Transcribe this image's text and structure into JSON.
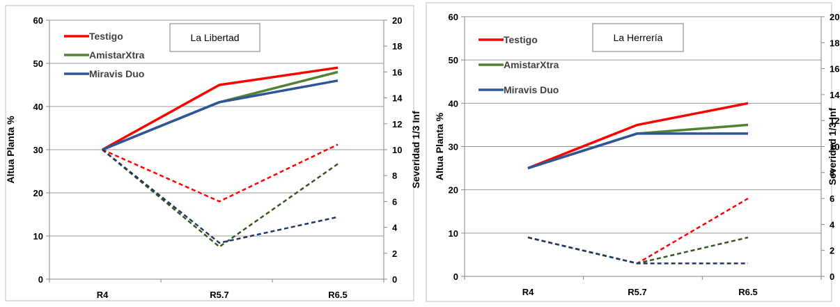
{
  "chart_data": [
    {
      "type": "line",
      "annotation": "La Libertad",
      "categories": [
        "R4",
        "R5.7",
        "R6.5"
      ],
      "ylabel": "Altua Planta %",
      "y2label": "Severidad 1/3 Inf",
      "ylim": [
        0,
        60
      ],
      "yticks": [
        0,
        10,
        20,
        30,
        40,
        50,
        60
      ],
      "y2lim": [
        0,
        20
      ],
      "y2ticks": [
        0,
        2,
        4,
        6,
        8,
        10,
        12,
        14,
        16,
        18,
        20
      ],
      "grid": true,
      "legend_position": "top-left",
      "series": [
        {
          "name": "Testigo",
          "axis": "left",
          "style": "solid",
          "color": "#ff0000",
          "values": [
            30,
            45,
            49
          ]
        },
        {
          "name": "AmistarXtra",
          "axis": "left",
          "style": "solid",
          "color": "#548235",
          "values": [
            30,
            41,
            48
          ]
        },
        {
          "name": "Miravis Duo",
          "axis": "left",
          "style": "solid",
          "color": "#2f5597",
          "values": [
            30,
            41,
            46
          ]
        },
        {
          "axis": "right",
          "style": "dashed",
          "color": "#ff0000",
          "values": [
            10,
            6,
            10.4
          ]
        },
        {
          "axis": "right",
          "style": "dashed",
          "color": "#375623",
          "values": [
            10,
            2.5,
            8.9
          ]
        },
        {
          "axis": "right",
          "style": "dashed",
          "color": "#1f3864",
          "values": [
            10,
            2.8,
            4.8
          ]
        }
      ]
    },
    {
      "type": "line",
      "annotation": "La Herrería",
      "categories": [
        "R4",
        "R5.7",
        "R6.5"
      ],
      "ylabel": "Altua Planta %",
      "y2label": "Severidad 1/3 Inf",
      "ylim": [
        0,
        60
      ],
      "yticks": [
        0,
        10,
        20,
        30,
        40,
        50,
        60
      ],
      "y2lim": [
        0,
        20
      ],
      "y2ticks": [
        0,
        2,
        4,
        6,
        8,
        10,
        12,
        14,
        16,
        18,
        20
      ],
      "grid": true,
      "legend_position": "top-left",
      "series": [
        {
          "name": "Testigo",
          "axis": "left",
          "style": "solid",
          "color": "#ff0000",
          "values": [
            25,
            35,
            40
          ]
        },
        {
          "name": "AmistarXtra",
          "axis": "left",
          "style": "solid",
          "color": "#548235",
          "values": [
            25,
            33,
            35
          ]
        },
        {
          "name": "Miravis Duo",
          "axis": "left",
          "style": "solid",
          "color": "#2f5597",
          "values": [
            25,
            33,
            33
          ]
        },
        {
          "axis": "right",
          "style": "dashed",
          "color": "#ff0000",
          "values": [
            3,
            1,
            6
          ]
        },
        {
          "axis": "right",
          "style": "dashed",
          "color": "#375623",
          "values": [
            3,
            1,
            3
          ]
        },
        {
          "axis": "right",
          "style": "dashed",
          "color": "#1f3864",
          "values": [
            3,
            1,
            1
          ]
        }
      ]
    }
  ]
}
